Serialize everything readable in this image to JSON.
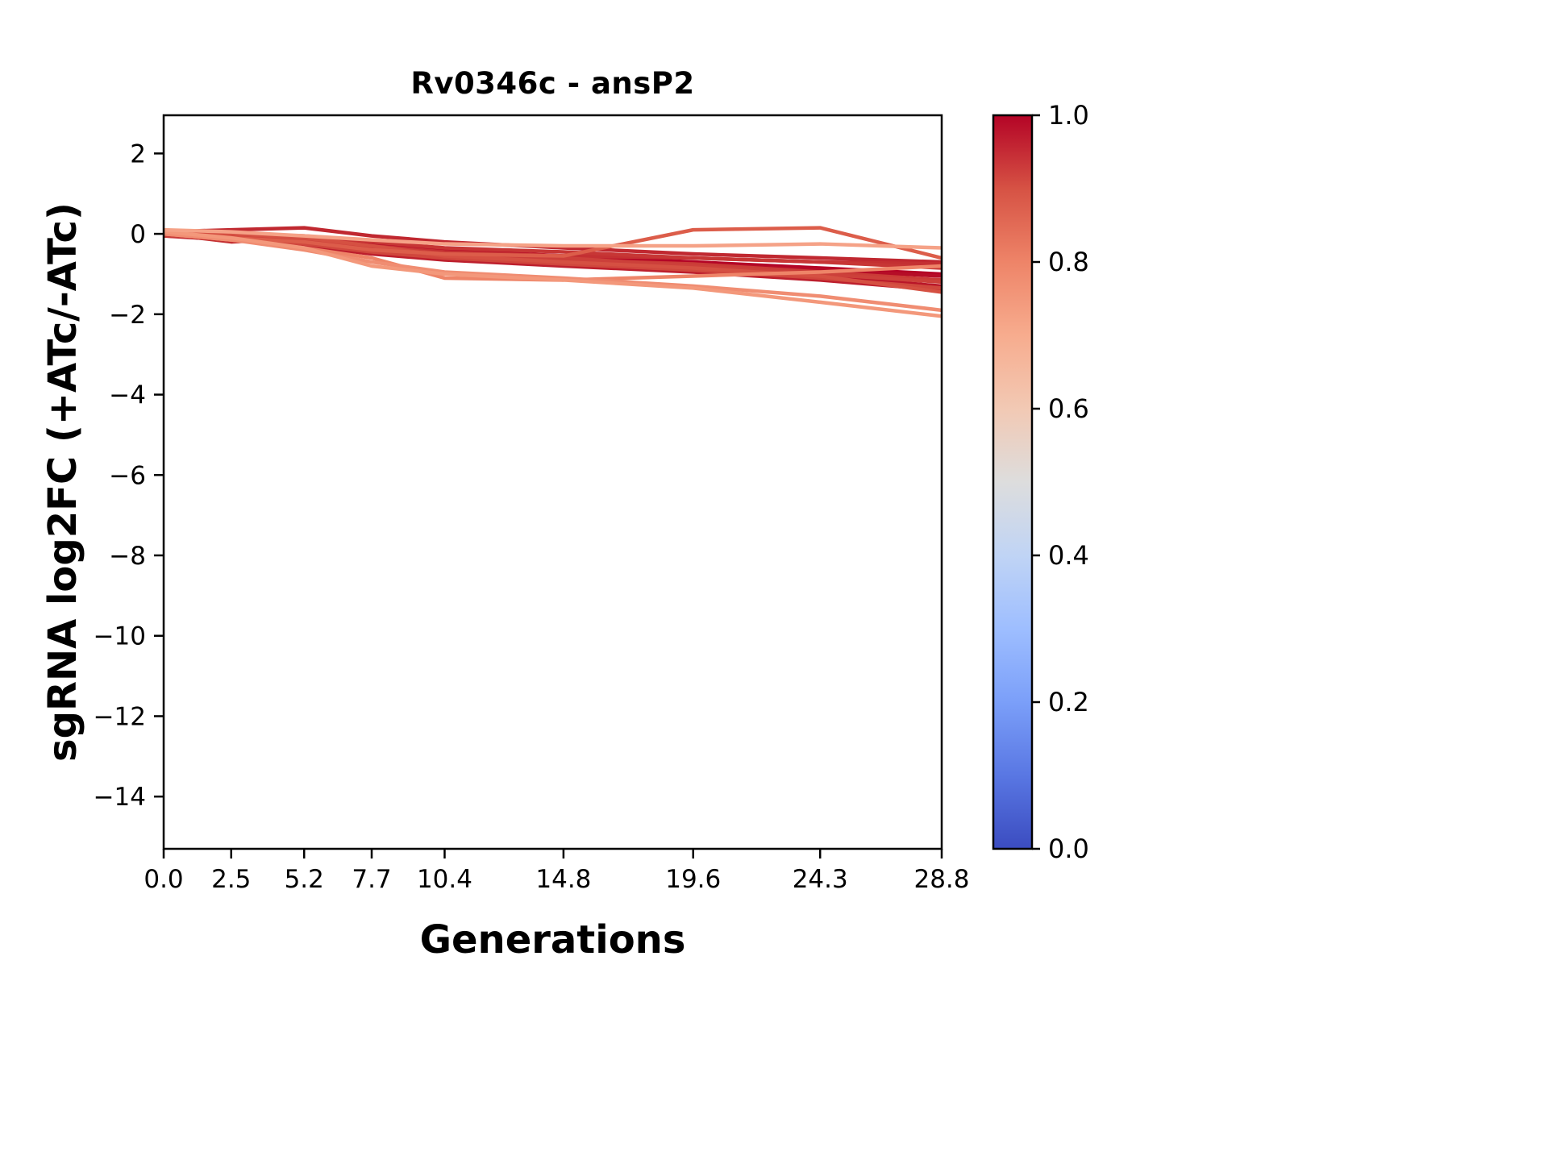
{
  "chart_data": {
    "type": "line",
    "title": "Rv0346c - ansP2",
    "xlabel": "Generations",
    "ylabel": "sgRNA log2FC (+ATc/-ATc)",
    "grid": false,
    "xlim": [
      0.0,
      28.8
    ],
    "ylim": [
      -15.3,
      2.95
    ],
    "x": [
      0.0,
      2.5,
      5.2,
      7.7,
      10.4,
      14.8,
      19.6,
      24.3,
      28.8
    ],
    "xtick_labels": [
      "0.0",
      "2.5",
      "5.2",
      "7.7",
      "10.4",
      "14.8",
      "19.6",
      "24.3",
      "28.8"
    ],
    "ytick_values": [
      2,
      0,
      -2,
      -4,
      -6,
      -8,
      -10,
      -12,
      -14
    ],
    "ytick_labels": [
      "2",
      "0",
      "−2",
      "−4",
      "−6",
      "−8",
      "−10",
      "−12",
      "−14"
    ],
    "series": [
      {
        "id": "line-1",
        "value": 1.0,
        "color": "#b40426",
        "values": [
          0.0,
          -0.05,
          -0.1,
          -0.25,
          -0.4,
          -0.55,
          -0.7,
          -0.85,
          -1.0
        ]
      },
      {
        "id": "line-2",
        "value": 0.99,
        "color": "#b60d27",
        "values": [
          0.05,
          0.0,
          -0.15,
          -0.3,
          -0.5,
          -0.6,
          -0.75,
          -0.9,
          -1.05
        ]
      },
      {
        "id": "line-3",
        "value": 0.98,
        "color": "#b91629",
        "values": [
          0.0,
          -0.1,
          -0.2,
          -0.4,
          -0.55,
          -0.7,
          -0.85,
          -1.05,
          -1.3
        ]
      },
      {
        "id": "line-4",
        "value": 0.97,
        "color": "#bd1f2d",
        "values": [
          -0.05,
          -0.15,
          -0.3,
          -0.5,
          -0.65,
          -0.8,
          -0.95,
          -1.15,
          -1.4
        ]
      },
      {
        "id": "line-5",
        "value": 0.96,
        "color": "#c02830",
        "values": [
          0.05,
          0.1,
          0.15,
          -0.05,
          -0.2,
          -0.35,
          -0.5,
          -0.6,
          -0.7
        ]
      },
      {
        "id": "line-6",
        "value": 0.95,
        "color": "#c43032",
        "values": [
          0.0,
          -0.2,
          -0.1,
          -0.3,
          -0.45,
          -0.55,
          -0.6,
          -0.7,
          -0.75
        ]
      },
      {
        "id": "line-7",
        "value": 0.94,
        "color": "#c73635",
        "values": [
          0.0,
          0.0,
          -0.05,
          -0.2,
          -0.35,
          -0.45,
          -0.6,
          -0.7,
          -0.85
        ]
      },
      {
        "id": "line-8",
        "value": 0.93,
        "color": "#ca3b37",
        "values": [
          -0.05,
          -0.1,
          -0.2,
          -0.35,
          -0.5,
          -0.65,
          -0.75,
          -0.95,
          -1.15
        ]
      },
      {
        "id": "line-9",
        "value": 0.92,
        "color": "#cc403a",
        "values": [
          0.0,
          -0.05,
          -0.15,
          -0.3,
          -0.5,
          -0.6,
          -0.8,
          -1.0,
          -1.2
        ]
      },
      {
        "id": "line-10",
        "value": 0.9,
        "color": "#d0473d",
        "values": [
          0.0,
          -0.1,
          -0.25,
          -0.45,
          -0.6,
          -0.75,
          -0.9,
          -1.1,
          -1.35
        ]
      },
      {
        "id": "line-11",
        "value": 0.88,
        "color": "#d55042",
        "values": [
          0.05,
          0.0,
          -0.1,
          -0.3,
          -0.55,
          -0.7,
          -0.85,
          -1.05,
          -1.45
        ]
      },
      {
        "id": "line-12",
        "value": 0.85,
        "color": "#dc5d4a",
        "values": [
          0.0,
          -0.1,
          -0.2,
          -0.4,
          -0.5,
          -0.55,
          0.1,
          0.15,
          -0.6
        ]
      },
      {
        "id": "line-13",
        "value": 0.8,
        "color": "#ee8468",
        "values": [
          0.0,
          -0.15,
          -0.35,
          -0.6,
          -1.1,
          -1.15,
          -1.05,
          -0.95,
          -0.8
        ]
      },
      {
        "id": "line-14",
        "value": 0.78,
        "color": "#f08d72",
        "values": [
          0.0,
          -0.15,
          -0.4,
          -0.7,
          -0.95,
          -1.1,
          -1.3,
          -1.55,
          -1.9
        ]
      },
      {
        "id": "line-15",
        "value": 0.75,
        "color": "#f3987b",
        "values": [
          0.05,
          -0.1,
          -0.35,
          -0.8,
          -1.0,
          -1.15,
          -1.35,
          -1.7,
          -2.05
        ]
      },
      {
        "id": "line-16",
        "value": 0.72,
        "color": "#f5a287",
        "values": [
          0.1,
          0.05,
          -0.05,
          -0.15,
          -0.25,
          -0.3,
          -0.3,
          -0.25,
          -0.35
        ]
      }
    ],
    "colorbar": {
      "position": "right",
      "tick_labels": [
        "1.0",
        "0.8",
        "0.6",
        "0.4",
        "0.2",
        "0.0"
      ],
      "tick_values": [
        1.0,
        0.8,
        0.6,
        0.4,
        0.2,
        0.0
      ],
      "colormap": "coolwarm",
      "stops": [
        {
          "pos": 0.0,
          "color": "#3b4cc0"
        },
        {
          "pos": 0.1,
          "color": "#5977e3"
        },
        {
          "pos": 0.2,
          "color": "#7b9ff9"
        },
        {
          "pos": 0.3,
          "color": "#9ebeff"
        },
        {
          "pos": 0.4,
          "color": "#c0d4f5"
        },
        {
          "pos": 0.5,
          "color": "#dddddd"
        },
        {
          "pos": 0.6,
          "color": "#f2c9b4"
        },
        {
          "pos": 0.7,
          "color": "#f7ac8e"
        },
        {
          "pos": 0.8,
          "color": "#ee8468"
        },
        {
          "pos": 0.9,
          "color": "#d65244"
        },
        {
          "pos": 1.0,
          "color": "#b40426"
        }
      ]
    },
    "axis_color": "#000000",
    "line_width": 4.5
  }
}
